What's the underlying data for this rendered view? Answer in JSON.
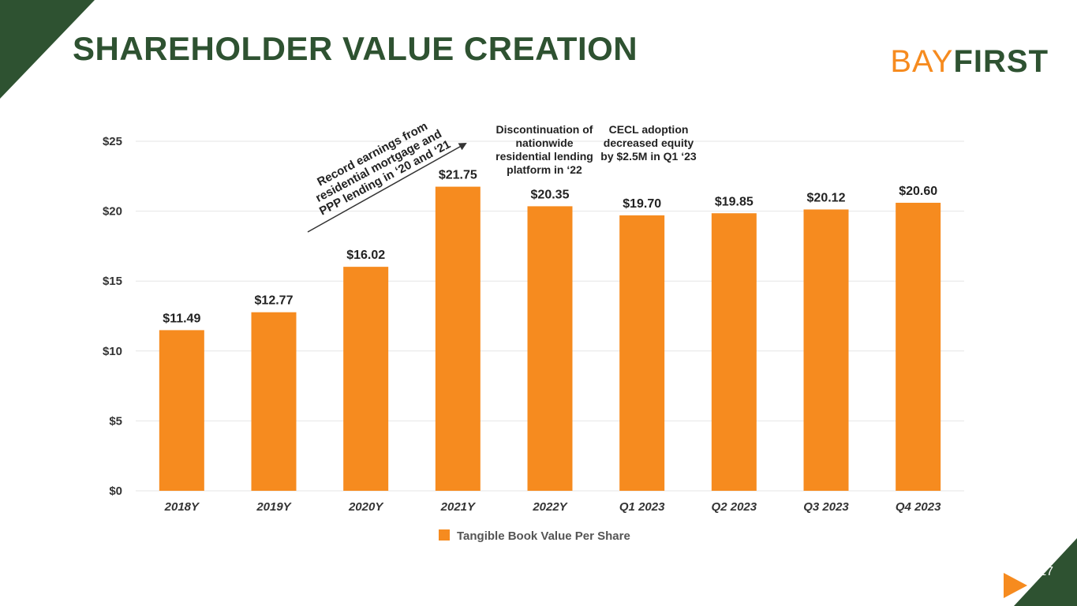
{
  "slide": {
    "title": "SHAREHOLDER VALUE CREATION",
    "logo_bay": "BAY",
    "logo_first": "FIRST",
    "page_number": "17"
  },
  "annotations": {
    "record": "Record earnings from residential mortgage and PPP lending in ‘20 and ‘21",
    "discontinuation": "Discontinuation of nationwide residential lending platform in ‘22",
    "cecl": "CECL adoption decreased equity by  $2.5M in Q1 ‘23"
  },
  "colors": {
    "bar": "#f68b1f",
    "brand_green": "#2e5231",
    "grid": "#e6e6e6"
  },
  "chart_data": {
    "type": "bar",
    "categories": [
      "2018Y",
      "2019Y",
      "2020Y",
      "2021Y",
      "2022Y",
      "Q1 2023",
      "Q2 2023",
      "Q3 2023",
      "Q4 2023"
    ],
    "series": [
      {
        "name": "Tangible Book Value Per Share",
        "values": [
          11.49,
          12.77,
          16.02,
          21.75,
          20.35,
          19.7,
          19.85,
          20.12,
          20.6
        ],
        "labels": [
          "$11.49",
          "$12.77",
          "$16.02",
          "$21.75",
          "$20.35",
          "$19.70",
          "$19.85",
          "$20.12",
          "$20.60"
        ]
      }
    ],
    "yticks": [
      0,
      5,
      10,
      15,
      20,
      25
    ],
    "ytick_labels": [
      "$0",
      "$5",
      "$10",
      "$15",
      "$20",
      "$25"
    ],
    "ylim": [
      0,
      25
    ],
    "grid": true,
    "legend_position": "bottom"
  }
}
